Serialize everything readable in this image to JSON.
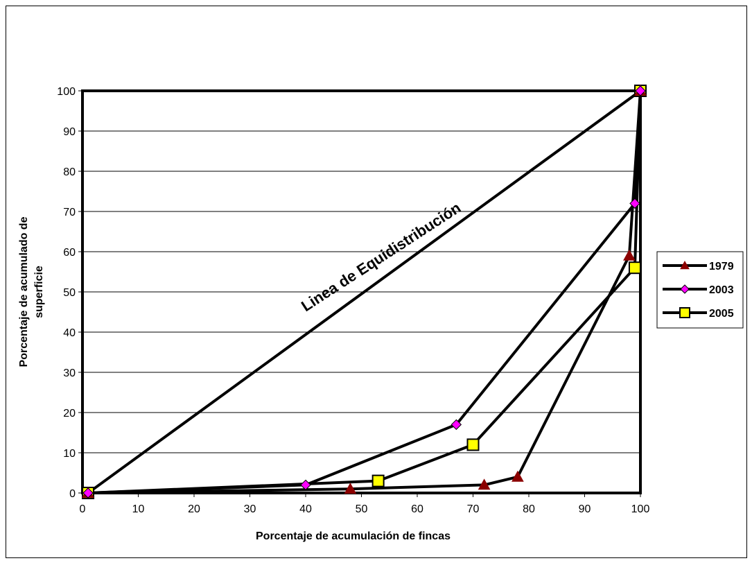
{
  "chart_data": {
    "type": "line",
    "title": "",
    "xlabel": "Porcentaje de acumulación de fincas",
    "ylabel_lines": [
      "Porcentaje de acumulado de",
      "superficie"
    ],
    "xlim": [
      0,
      100
    ],
    "ylim": [
      0,
      100
    ],
    "x_ticks": [
      0,
      10,
      20,
      30,
      40,
      50,
      60,
      70,
      80,
      90,
      100
    ],
    "y_ticks": [
      0,
      10,
      20,
      30,
      40,
      50,
      60,
      70,
      80,
      90,
      100
    ],
    "grid": "horizontal",
    "legend_position": "right",
    "annotation": {
      "text": "Linea de Equidistribución",
      "x": 40,
      "y": 45
    },
    "equality_line": [
      [
        1,
        0
      ],
      [
        100,
        100
      ]
    ],
    "series": [
      {
        "name": "1979",
        "marker": "triangle",
        "marker_color": "#8b0000",
        "points": [
          [
            1,
            0
          ],
          [
            48,
            1
          ],
          [
            72,
            2
          ],
          [
            78,
            4
          ],
          [
            98,
            59
          ],
          [
            100,
            100
          ]
        ]
      },
      {
        "name": "2003",
        "marker": "diamond",
        "marker_color": "#ff00ff",
        "points": [
          [
            1,
            0
          ],
          [
            40,
            2
          ],
          [
            67,
            17
          ],
          [
            99,
            72
          ],
          [
            100,
            100
          ]
        ]
      },
      {
        "name": "2005",
        "marker": "square",
        "marker_color": "#ffff00",
        "points": [
          [
            1,
            0
          ],
          [
            53,
            3
          ],
          [
            70,
            12
          ],
          [
            99,
            56
          ],
          [
            100,
            100
          ]
        ]
      }
    ]
  }
}
